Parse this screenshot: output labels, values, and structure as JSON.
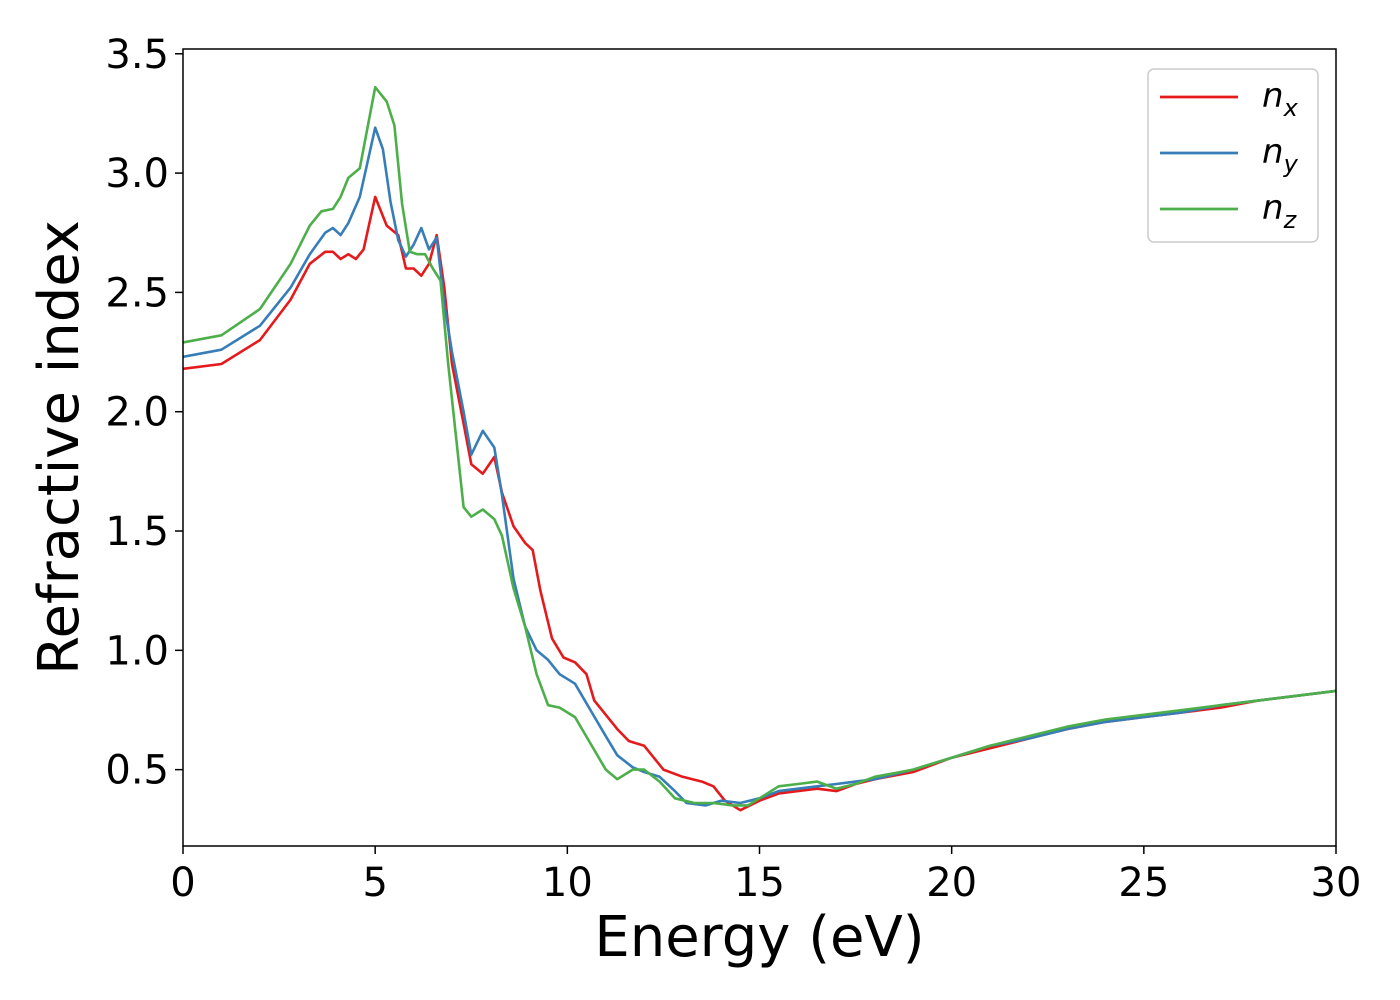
{
  "chart_data": {
    "type": "line",
    "title": "",
    "xlabel": "Energy (eV)",
    "ylabel": "Refractive index",
    "xlim": [
      0,
      30
    ],
    "ylim": [
      0.18,
      3.52
    ],
    "xticks": [
      0,
      5,
      10,
      15,
      20,
      25,
      30
    ],
    "xtick_labels": [
      "0",
      "5",
      "10",
      "15",
      "20",
      "25",
      "30"
    ],
    "yticks": [
      0.5,
      1.0,
      1.5,
      2.0,
      2.5,
      3.0,
      3.5
    ],
    "ytick_labels": [
      "0.5",
      "1.0",
      "1.5",
      "2.0",
      "2.5",
      "3.0",
      "3.5"
    ],
    "grid": false,
    "legend_position": "top-right",
    "series": [
      {
        "name": "n_x",
        "label_base": "n",
        "label_sub": "x",
        "color": "#e41a1c",
        "points": [
          [
            0,
            2.18
          ],
          [
            1,
            2.2
          ],
          [
            2,
            2.3
          ],
          [
            2.8,
            2.47
          ],
          [
            3.3,
            2.62
          ],
          [
            3.7,
            2.67
          ],
          [
            3.9,
            2.67
          ],
          [
            4.1,
            2.64
          ],
          [
            4.3,
            2.66
          ],
          [
            4.5,
            2.64
          ],
          [
            4.7,
            2.68
          ],
          [
            5,
            2.9
          ],
          [
            5.3,
            2.78
          ],
          [
            5.6,
            2.74
          ],
          [
            5.8,
            2.6
          ],
          [
            6,
            2.6
          ],
          [
            6.2,
            2.57
          ],
          [
            6.4,
            2.62
          ],
          [
            6.6,
            2.74
          ],
          [
            6.8,
            2.52
          ],
          [
            7,
            2.2
          ],
          [
            7.3,
            1.95
          ],
          [
            7.5,
            1.78
          ],
          [
            7.8,
            1.74
          ],
          [
            8.1,
            1.81
          ],
          [
            8.3,
            1.66
          ],
          [
            8.6,
            1.52
          ],
          [
            8.9,
            1.45
          ],
          [
            9.1,
            1.42
          ],
          [
            9.3,
            1.25
          ],
          [
            9.6,
            1.05
          ],
          [
            9.9,
            0.97
          ],
          [
            10.2,
            0.95
          ],
          [
            10.5,
            0.9
          ],
          [
            10.7,
            0.79
          ],
          [
            11,
            0.73
          ],
          [
            11.3,
            0.67
          ],
          [
            11.6,
            0.62
          ],
          [
            12,
            0.6
          ],
          [
            12.2,
            0.56
          ],
          [
            12.5,
            0.5
          ],
          [
            13,
            0.47
          ],
          [
            13.5,
            0.45
          ],
          [
            13.8,
            0.43
          ],
          [
            14.1,
            0.37
          ],
          [
            14.5,
            0.33
          ],
          [
            15,
            0.37
          ],
          [
            15.5,
            0.4
          ],
          [
            16,
            0.41
          ],
          [
            16.5,
            0.42
          ],
          [
            17,
            0.41
          ],
          [
            17.5,
            0.44
          ],
          [
            18,
            0.46
          ],
          [
            19,
            0.49
          ],
          [
            20,
            0.55
          ],
          [
            21,
            0.59
          ],
          [
            22,
            0.63
          ],
          [
            23,
            0.67
          ],
          [
            24,
            0.7
          ],
          [
            25,
            0.72
          ],
          [
            26,
            0.74
          ],
          [
            27,
            0.76
          ],
          [
            28,
            0.79
          ],
          [
            29,
            0.81
          ],
          [
            30,
            0.83
          ]
        ]
      },
      {
        "name": "n_y",
        "label_base": "n",
        "label_sub": "y",
        "color": "#377eb8",
        "points": [
          [
            0,
            2.23
          ],
          [
            1,
            2.26
          ],
          [
            2,
            2.36
          ],
          [
            2.8,
            2.52
          ],
          [
            3.3,
            2.66
          ],
          [
            3.7,
            2.75
          ],
          [
            3.9,
            2.77
          ],
          [
            4.1,
            2.74
          ],
          [
            4.3,
            2.79
          ],
          [
            4.6,
            2.9
          ],
          [
            5,
            3.19
          ],
          [
            5.2,
            3.1
          ],
          [
            5.4,
            2.88
          ],
          [
            5.6,
            2.72
          ],
          [
            5.8,
            2.65
          ],
          [
            6,
            2.7
          ],
          [
            6.2,
            2.77
          ],
          [
            6.4,
            2.68
          ],
          [
            6.6,
            2.73
          ],
          [
            6.8,
            2.45
          ],
          [
            7,
            2.25
          ],
          [
            7.3,
            2.0
          ],
          [
            7.5,
            1.82
          ],
          [
            7.8,
            1.92
          ],
          [
            8.1,
            1.85
          ],
          [
            8.3,
            1.65
          ],
          [
            8.6,
            1.3
          ],
          [
            8.9,
            1.1
          ],
          [
            9.2,
            1.0
          ],
          [
            9.5,
            0.96
          ],
          [
            9.8,
            0.9
          ],
          [
            10.2,
            0.86
          ],
          [
            10.6,
            0.75
          ],
          [
            11,
            0.64
          ],
          [
            11.3,
            0.56
          ],
          [
            11.7,
            0.51
          ],
          [
            12,
            0.49
          ],
          [
            12.4,
            0.47
          ],
          [
            12.8,
            0.41
          ],
          [
            13.1,
            0.36
          ],
          [
            13.6,
            0.35
          ],
          [
            14,
            0.37
          ],
          [
            14.5,
            0.36
          ],
          [
            15,
            0.38
          ],
          [
            15.5,
            0.41
          ],
          [
            16,
            0.42
          ],
          [
            16.5,
            0.43
          ],
          [
            17,
            0.44
          ],
          [
            17.5,
            0.45
          ],
          [
            18,
            0.46
          ],
          [
            19,
            0.5
          ],
          [
            20,
            0.55
          ],
          [
            21,
            0.6
          ],
          [
            22,
            0.63
          ],
          [
            23,
            0.67
          ],
          [
            24,
            0.7
          ],
          [
            25,
            0.72
          ],
          [
            26,
            0.74
          ],
          [
            27,
            0.77
          ],
          [
            28,
            0.79
          ],
          [
            29,
            0.81
          ],
          [
            30,
            0.83
          ]
        ]
      },
      {
        "name": "n_z",
        "label_base": "n",
        "label_sub": "z",
        "color": "#4daf4a",
        "points": [
          [
            0,
            2.29
          ],
          [
            1,
            2.32
          ],
          [
            2,
            2.43
          ],
          [
            2.8,
            2.62
          ],
          [
            3.3,
            2.78
          ],
          [
            3.6,
            2.84
          ],
          [
            3.9,
            2.85
          ],
          [
            4.1,
            2.9
          ],
          [
            4.3,
            2.98
          ],
          [
            4.6,
            3.02
          ],
          [
            5,
            3.36
          ],
          [
            5.3,
            3.3
          ],
          [
            5.5,
            3.2
          ],
          [
            5.7,
            2.87
          ],
          [
            5.9,
            2.67
          ],
          [
            6.1,
            2.66
          ],
          [
            6.3,
            2.66
          ],
          [
            6.5,
            2.6
          ],
          [
            6.7,
            2.55
          ],
          [
            6.9,
            2.2
          ],
          [
            7.1,
            1.9
          ],
          [
            7.3,
            1.6
          ],
          [
            7.5,
            1.56
          ],
          [
            7.8,
            1.59
          ],
          [
            8.1,
            1.55
          ],
          [
            8.3,
            1.48
          ],
          [
            8.6,
            1.26
          ],
          [
            8.9,
            1.1
          ],
          [
            9.2,
            0.9
          ],
          [
            9.5,
            0.77
          ],
          [
            9.8,
            0.76
          ],
          [
            10.2,
            0.72
          ],
          [
            10.6,
            0.61
          ],
          [
            11,
            0.5
          ],
          [
            11.3,
            0.46
          ],
          [
            11.7,
            0.5
          ],
          [
            12,
            0.5
          ],
          [
            12.4,
            0.45
          ],
          [
            12.8,
            0.38
          ],
          [
            13.3,
            0.36
          ],
          [
            13.8,
            0.36
          ],
          [
            14.3,
            0.35
          ],
          [
            14.7,
            0.35
          ],
          [
            15,
            0.38
          ],
          [
            15.5,
            0.43
          ],
          [
            16,
            0.44
          ],
          [
            16.5,
            0.45
          ],
          [
            17,
            0.42
          ],
          [
            17.5,
            0.44
          ],
          [
            18,
            0.47
          ],
          [
            19,
            0.5
          ],
          [
            20,
            0.55
          ],
          [
            21,
            0.6
          ],
          [
            22,
            0.64
          ],
          [
            23,
            0.68
          ],
          [
            24,
            0.71
          ],
          [
            25,
            0.73
          ],
          [
            26,
            0.75
          ],
          [
            27,
            0.77
          ],
          [
            28,
            0.79
          ],
          [
            29,
            0.81
          ],
          [
            30,
            0.83
          ]
        ]
      }
    ]
  }
}
